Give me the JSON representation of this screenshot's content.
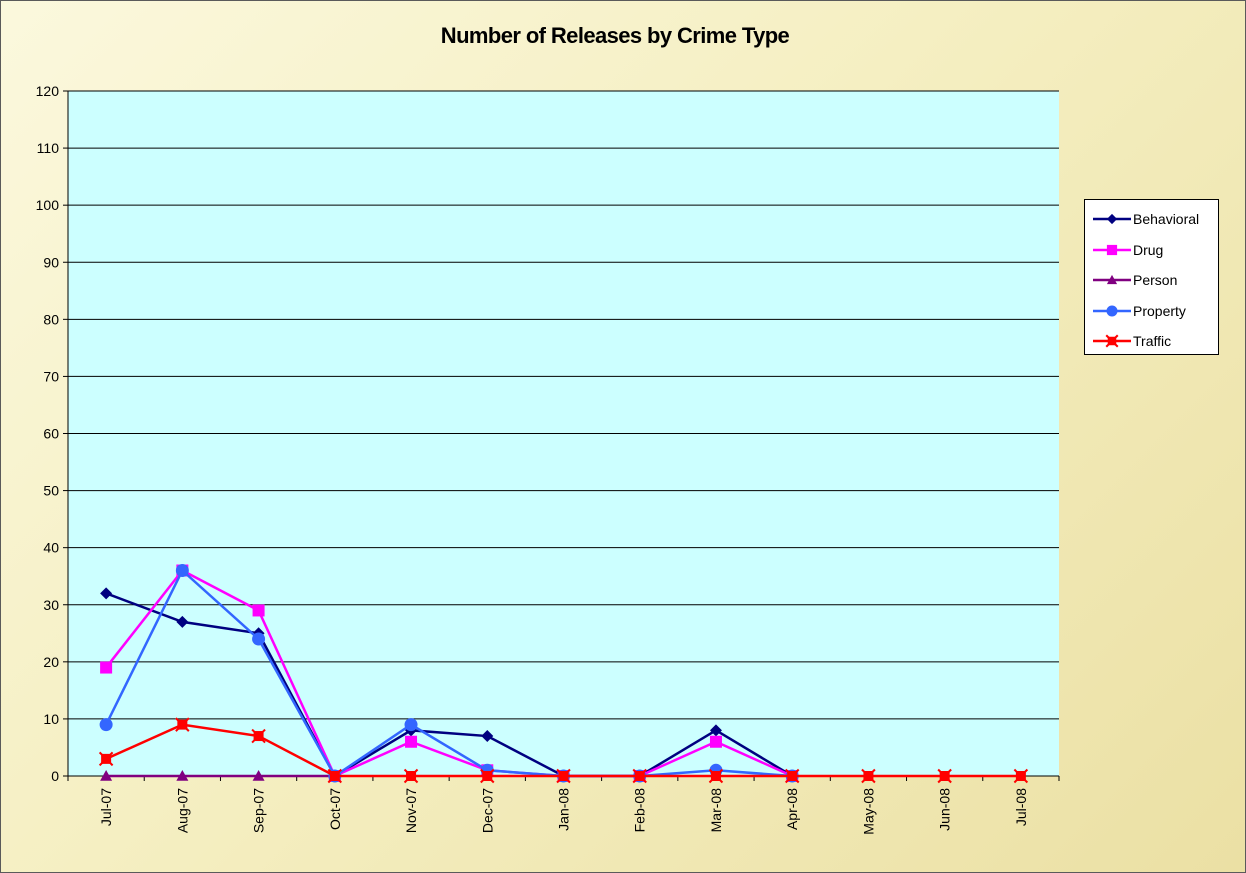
{
  "chart_data": {
    "type": "line",
    "title": "Number of Releases by Crime Type",
    "xlabel": "",
    "ylabel": "",
    "categories": [
      "Jul-07",
      "Aug-07",
      "Sep-07",
      "Oct-07",
      "Nov-07",
      "Dec-07",
      "Jan-08",
      "Feb-08",
      "Mar-08",
      "Apr-08",
      "May-08",
      "Jun-08",
      "Jul-08"
    ],
    "ylim": [
      0,
      120
    ],
    "yticks": [
      0,
      10,
      20,
      30,
      40,
      50,
      60,
      70,
      80,
      90,
      100,
      110,
      120
    ],
    "ytick_labels": [
      "0",
      "10",
      "20",
      "30",
      "40",
      "50",
      "60",
      "70",
      "80",
      "90",
      "100",
      "110",
      "120"
    ],
    "grid": true,
    "legend_position": "right",
    "plot_background": "#ccffff",
    "series": [
      {
        "name": "Behavioral",
        "color": "#000080",
        "marker": "diamond",
        "values": [
          32,
          27,
          25,
          0,
          8,
          7,
          0,
          0,
          8,
          0,
          null,
          null,
          null
        ]
      },
      {
        "name": "Drug",
        "color": "#ff00ff",
        "marker": "square",
        "values": [
          19,
          36,
          29,
          0,
          6,
          1,
          0,
          0,
          6,
          0,
          null,
          null,
          null
        ]
      },
      {
        "name": "Person",
        "color": "#800080",
        "marker": "triangle",
        "values": [
          0,
          0,
          0,
          0,
          null,
          null,
          null,
          null,
          null,
          null,
          null,
          null,
          null
        ]
      },
      {
        "name": "Property",
        "color": "#3366ff",
        "marker": "circle",
        "values": [
          9,
          36,
          24,
          0,
          9,
          1,
          0,
          0,
          1,
          0,
          null,
          null,
          null
        ]
      },
      {
        "name": "Traffic",
        "color": "#ff0000",
        "marker": "star",
        "values": [
          3,
          9,
          7,
          0,
          0,
          0,
          0,
          0,
          0,
          0,
          0,
          0,
          0
        ]
      }
    ]
  }
}
